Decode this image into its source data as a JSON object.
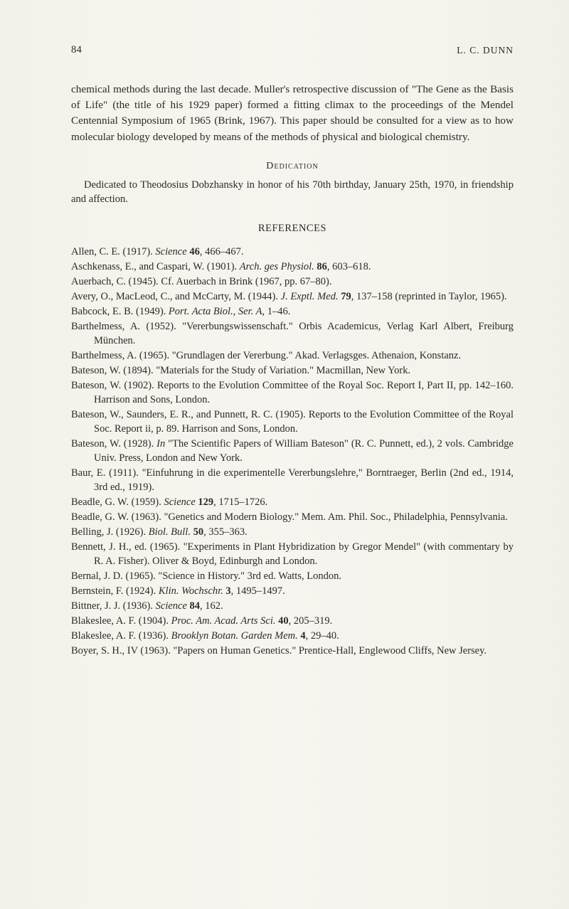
{
  "page_number": "84",
  "running_author": "L. C. DUNN",
  "paragraph": "chemical methods during the last decade. Muller's retrospective discussion of \"The Gene as the Basis of Life\" (the title of his 1929 paper) formed a fitting climax to the proceedings of the Mendel Centennial Symposium of 1965 (Brink, 1967). This paper should be consulted for a view as to how molecular biology developed by means of the methods of physical and biological chemistry.",
  "dedication_heading": "Dedication",
  "dedication_body": "Dedicated to Theodosius Dobzhansky in honor of his 70th birthday, January 25th, 1970, in friendship and affection.",
  "references_heading": "REFERENCES",
  "references": [
    "Allen, C. E. (1917). <em>Science</em> <b>46</b>, 466–467.",
    "Aschkenass, E., and Caspari, W. (1901). <em>Arch. ges Physiol.</em> <b>86</b>, 603–618.",
    "Auerbach, C. (1945). Cf. Auerbach in Brink (1967, pp. 67–80).",
    "Avery, O., MacLeod, C., and McCarty, M. (1944). <em>J. Exptl. Med.</em> <b>79</b>, 137–158 (reprinted in Taylor, 1965).",
    "Babcock, E. B. (1949). <em>Port. Acta Biol., Ser. A</em>, 1–46.",
    "Barthelmess, A. (1952). \"Vererbungswissenschaft.\" Orbis Academicus, Verlag Karl Albert, Freiburg München.",
    "Barthelmess, A. (1965). \"Grundlagen der Vererbung.\" Akad. Verlagsges. Athenaion, Konstanz.",
    "Bateson, W. (1894). \"Materials for the Study of Variation.\" Macmillan, New York.",
    "Bateson, W. (1902). Reports to the Evolution Committee of the Royal Soc. Report I, Part II, pp. 142–160. Harrison and Sons, London.",
    "Bateson, W., Saunders, E. R., and Punnett, R. C. (1905). Reports to the Evolution Committee of the Royal Soc. Report ii, p. 89. Harrison and Sons, London.",
    "Bateson, W. (1928). <em>In</em> \"The Scientific Papers of William Bateson\" (R. C. Punnett, ed.), 2 vols. Cambridge Univ. Press, London and New York.",
    "Baur, E. (1911). \"Einfuhrung in die experimentelle Vererbungslehre,\" Borntraeger, Berlin (2nd ed., 1914, 3rd ed., 1919).",
    "Beadle, G. W. (1959). <em>Science</em> <b>129</b>, 1715–1726.",
    "Beadle, G. W. (1963). \"Genetics and Modern Biology.\" Mem. Am. Phil. Soc., Philadelphia, Pennsylvania.",
    "Belling, J. (1926). <em>Biol. Bull.</em> <b>50</b>, 355–363.",
    "Bennett, J. H., ed. (1965). \"Experiments in Plant Hybridization by Gregor Mendel\" (with commentary by R. A. Fisher). Oliver & Boyd, Edinburgh and London.",
    "Bernal, J. D. (1965). \"Science in History.\" 3rd ed. Watts, London.",
    "Bernstein, F. (1924). <em>Klin. Wochschr.</em> <b>3</b>, 1495–1497.",
    "Bittner, J. J. (1936). <em>Science</em> <b>84</b>, 162.",
    "Blakeslee, A. F. (1904). <em>Proc. Am. Acad. Arts Sci.</em> <b>40</b>, 205–319.",
    "Blakeslee, A. F. (1936). <em>Brooklyn Botan. Garden Mem.</em> <b>4</b>, 29–40.",
    "Boyer, S. H., IV (1963). \"Papers on Human Genetics.\" Prentice-Hall, Englewood Cliffs, New Jersey."
  ],
  "colors": {
    "text": "#2a2a2a",
    "background": "#f5f4ee"
  },
  "typography": {
    "body_fontsize_pt": 11.5,
    "refs_fontsize_pt": 11,
    "font_family": "Times New Roman"
  }
}
